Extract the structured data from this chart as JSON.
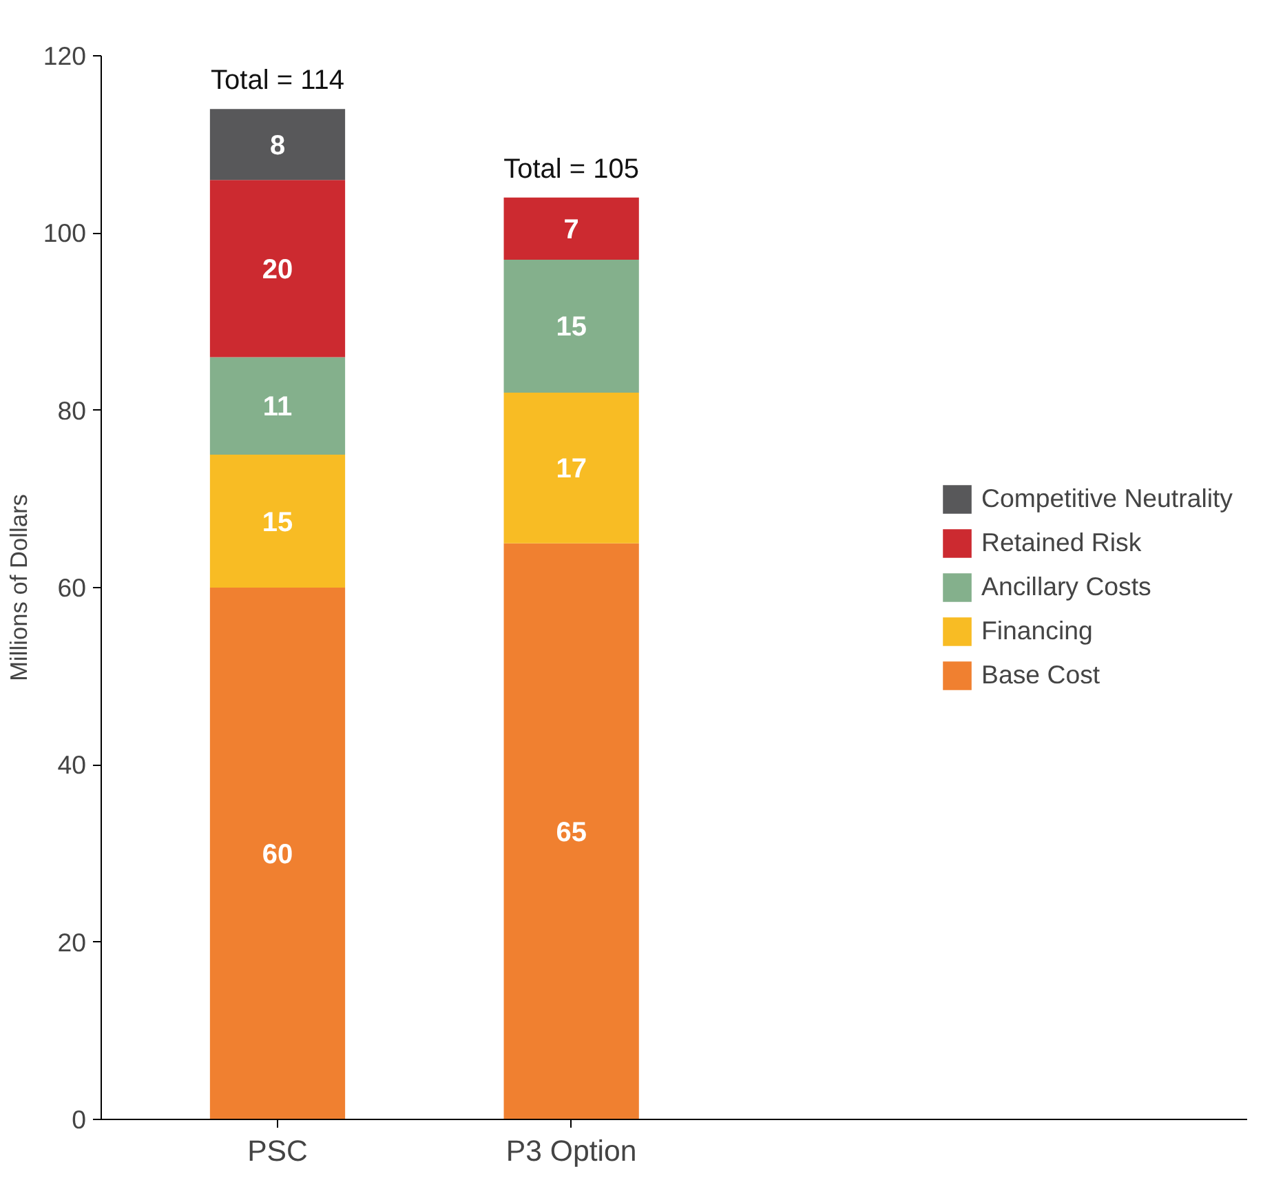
{
  "chart_data": {
    "type": "bar",
    "stacked": true,
    "ylabel": "Millions of Dollars",
    "categories": [
      "PSC",
      "P3 Option"
    ],
    "series": [
      {
        "name": "Base Cost",
        "color": "#f08030",
        "values": [
          60,
          65
        ]
      },
      {
        "name": "Financing",
        "color": "#f8bc24",
        "values": [
          15,
          17
        ]
      },
      {
        "name": "Ancillary Costs",
        "color": "#84b08c",
        "values": [
          11,
          15
        ]
      },
      {
        "name": "Retained Risk",
        "color": "#cc2a30",
        "values": [
          20,
          7
        ]
      },
      {
        "name": "Competitive Neutrality",
        "color": "#58585a",
        "values": [
          8,
          null
        ]
      }
    ],
    "totals": [
      "Total = 114",
      "Total = 105"
    ],
    "data_labels": true,
    "ylim": [
      0,
      120
    ],
    "yticks": [
      0,
      20,
      40,
      60,
      80,
      100,
      120
    ],
    "grid": false,
    "legend": "right"
  }
}
